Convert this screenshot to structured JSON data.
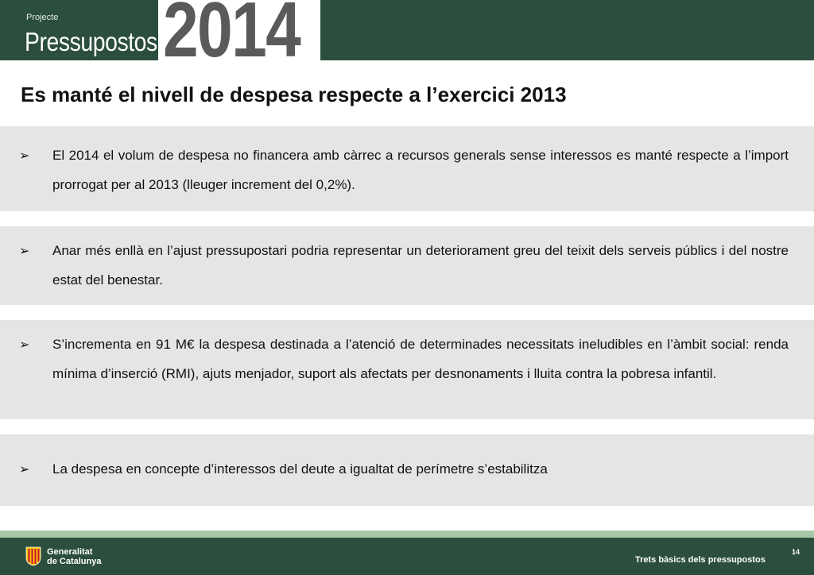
{
  "header": {
    "subtitle": "Projecte",
    "title": "Pressupostos",
    "year": "2014"
  },
  "page_title": "Es manté el nivell de despesa respecte a l’exercici 2013",
  "bullet_symbol": "➢",
  "bullets": [
    "El 2014 el volum de despesa no financera amb càrrec a recursos generals sense interessos es manté respecte a l’import prorrogat per al 2013 (lleuger increment del 0,2%).",
    "Anar més enllà en l’ajust pressupostari podria representar un deteriorament greu del teixit dels serveis públics i del nostre estat del benestar.",
    "S’incrementa en 91 M€ la despesa destinada a l’atenció de determinades necessitats ineludibles en l’àmbit social: renda mínima d’inserció (RMI), ajuts menjador, suport als afectats per desnonaments i lluita contra la pobresa infantil.",
    "La despesa en concepte d’interessos del deute a igualtat de perímetre s’estabilitza"
  ],
  "footer": {
    "org_line1": "Generalitat",
    "org_line2": "de Catalunya",
    "caption": "Trets bàsics dels pressupostos",
    "page_number": "14"
  },
  "colors": {
    "header_green": "#2b4e3e",
    "panel_gray": "#e5e5e5",
    "stripe_green": "#a7c8a8",
    "year_gray": "#5a5a5a",
    "logo_red": "#c8102e"
  },
  "icons": {
    "bullet": "arrowhead-bullet-icon",
    "logo": "generalitat-logo-icon"
  }
}
